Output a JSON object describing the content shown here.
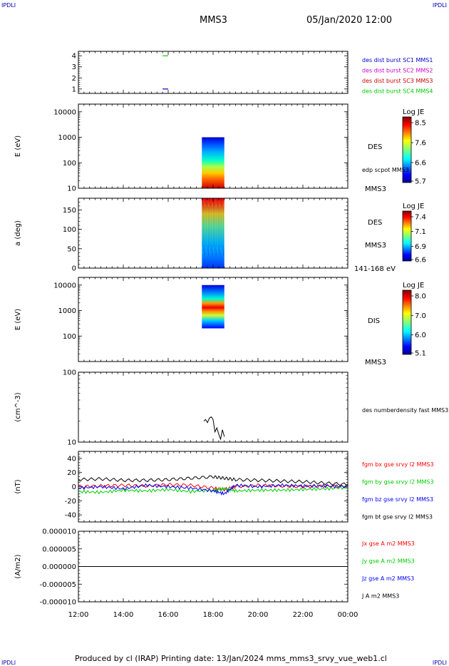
{
  "header": {
    "corner_tl": "IPDLI",
    "corner_tr": "IPDLI",
    "corner_bl": "IPDLI",
    "corner_br": "IPDLI",
    "spacecraft": "MMS3",
    "datetime": "05/Jan/2020 12:00"
  },
  "footer": {
    "text": "Produced by cl (IRAP)   Printing date: 13/Jan/2024   mms_mms3_srvy_vue_web1.cl"
  },
  "colors": {
    "mms1": "#0000cc",
    "mms2": "#cc00cc",
    "mms3": "#cc0000",
    "mms4": "#00cc00",
    "bx": "#ff0000",
    "by": "#00cc00",
    "bz": "#0000ff",
    "bt": "#000000"
  },
  "xaxis": {
    "ticks": [
      "12:00",
      "14:00",
      "16:00",
      "18:00",
      "20:00",
      "22:00",
      "00:00"
    ]
  },
  "chart_data": [
    {
      "type": "line",
      "panel": "burst",
      "ylim": [
        0.6,
        4.4
      ],
      "yticks": [
        "1",
        "2",
        "3",
        "4"
      ],
      "series": [
        {
          "name": "des dist burst SC1 MMS1",
          "color": "#0000cc",
          "x": [
            "15:45",
            "16:00"
          ],
          "y": [
            1,
            1
          ]
        },
        {
          "name": "des dist burst SC2 MMS2",
          "color": "#cc00cc",
          "x": [],
          "y": []
        },
        {
          "name": "des dist burst SC3 MMS3",
          "color": "#cc0000",
          "x": [],
          "y": []
        },
        {
          "name": "des dist burst SC4 MMS4",
          "color": "#00cc00",
          "x": [
            "15:45",
            "16:00"
          ],
          "y": [
            4,
            4
          ]
        }
      ]
    },
    {
      "type": "heatmap",
      "panel": "des-energy",
      "ylabel": "E (eV)",
      "yscale": "log",
      "ylim": [
        10,
        20000
      ],
      "yticks": [
        "10",
        "100",
        "1000",
        "10000"
      ],
      "x_range": [
        "17:30",
        "18:30"
      ],
      "y_range": [
        10,
        1000
      ],
      "label": "DES",
      "extra_label": "edp scpot MMS3",
      "sc_label": "MMS3",
      "colorbar": {
        "title": "Log JE",
        "ticks": [
          "8.5",
          "7.6",
          "6.6",
          "5.7"
        ]
      }
    },
    {
      "type": "heatmap",
      "panel": "des-pitch",
      "ylabel": "a (deg)",
      "ylim": [
        0,
        180
      ],
      "yticks": [
        "0",
        "50",
        "100",
        "150"
      ],
      "x_range": [
        "17:30",
        "18:30"
      ],
      "label": "DES",
      "sc_label": "MMS3",
      "energy_label": "141-168 eV",
      "colorbar": {
        "title": "Log JE",
        "ticks": [
          "7.4",
          "7.1",
          "6.9",
          "6.6"
        ]
      }
    },
    {
      "type": "heatmap",
      "panel": "dis-energy",
      "ylabel": "E (eV)",
      "yscale": "log",
      "ylim": [
        10,
        20000
      ],
      "yticks": [
        "100",
        "1000",
        "10000"
      ],
      "x_range": [
        "17:30",
        "18:30"
      ],
      "y_range": [
        200,
        10000
      ],
      "label": "DIS",
      "sc_label": "MMS3",
      "colorbar": {
        "title": "Log JE",
        "ticks": [
          "8.0",
          "7.0",
          "6.0",
          "5.1"
        ]
      }
    },
    {
      "type": "line",
      "panel": "density",
      "ylabel": "(cm^-3)",
      "yscale": "log",
      "ylim": [
        10,
        100
      ],
      "yticks": [
        "10",
        "100"
      ],
      "series": [
        {
          "name": "des numberdensity fast MMS3",
          "color": "#000000",
          "x": [
            "17:35",
            "17:40",
            "17:45",
            "17:50",
            "17:55",
            "18:00",
            "18:05",
            "18:10",
            "18:15",
            "18:20",
            "18:25",
            "18:30"
          ],
          "y": [
            20,
            21,
            19,
            22,
            23,
            21,
            14,
            16,
            13,
            11,
            15,
            12
          ]
        }
      ]
    },
    {
      "type": "line",
      "panel": "magnetic-field",
      "ylabel": "(nT)",
      "ylim": [
        -50,
        50
      ],
      "yticks": [
        "40",
        "20",
        "0",
        "-20",
        "-40"
      ],
      "series": [
        {
          "name": "fgm bx gse srvy l2 MMS3",
          "color": "#ff0000",
          "x": [
            "12:00",
            "13:00",
            "14:00",
            "15:00",
            "16:00",
            "17:00",
            "18:00",
            "18:30",
            "19:00",
            "20:00",
            "21:00",
            "22:00",
            "23:00",
            "00:00"
          ],
          "y": [
            0,
            1,
            2,
            1,
            3,
            2,
            -2,
            -4,
            0,
            2,
            1,
            0,
            1,
            0
          ]
        },
        {
          "name": "fgm by gse srvy l2 MMS3",
          "color": "#00cc00",
          "x": [
            "12:00",
            "13:00",
            "14:00",
            "15:00",
            "16:00",
            "17:00",
            "18:00",
            "18:30",
            "19:00",
            "20:00",
            "21:00",
            "22:00",
            "23:00",
            "00:00"
          ],
          "y": [
            -7,
            -8,
            -5,
            -6,
            -4,
            -7,
            -5,
            -3,
            -6,
            -5,
            -5,
            -4,
            -3,
            -1
          ]
        },
        {
          "name": "fgm bz gse srvy l2 MMS3",
          "color": "#0000ff",
          "x": [
            "12:00",
            "13:00",
            "14:00",
            "15:00",
            "16:00",
            "17:00",
            "18:00",
            "18:30",
            "19:00",
            "20:00",
            "21:00",
            "22:00",
            "23:00",
            "00:00"
          ],
          "y": [
            -2,
            0,
            -3,
            2,
            0,
            -2,
            -6,
            -10,
            2,
            0,
            2,
            1,
            1,
            0
          ]
        },
        {
          "name": "fgm bt gse srvy l2 MMS3",
          "color": "#000000",
          "x": [
            "12:00",
            "13:00",
            "14:00",
            "15:00",
            "16:00",
            "17:00",
            "18:00",
            "18:30",
            "19:00",
            "20:00",
            "21:00",
            "22:00",
            "23:00",
            "00:00"
          ],
          "y": [
            10,
            11,
            9,
            9,
            10,
            12,
            14,
            12,
            10,
            9,
            8,
            7,
            5,
            3
          ]
        }
      ]
    },
    {
      "type": "line",
      "panel": "current-density",
      "ylabel": "(A/m2)",
      "ylim": [
        -1e-05,
        1e-05
      ],
      "yticks": [
        "0.000010",
        "0.000005",
        "0.000000",
        "-0.000005",
        "-0.000010"
      ],
      "series": [
        {
          "name": "Jx gse A m2 MMS3",
          "color": "#ff0000",
          "x": [
            "12:00",
            "00:00"
          ],
          "y": [
            0,
            0
          ]
        },
        {
          "name": "Jy gse A m2 MMS3",
          "color": "#00cc00",
          "x": [
            "12:00",
            "00:00"
          ],
          "y": [
            0,
            0
          ]
        },
        {
          "name": "Jz gse A m2 MMS3",
          "color": "#0000ff",
          "x": [
            "12:00",
            "00:00"
          ],
          "y": [
            0,
            0
          ]
        },
        {
          "name": "J A m2 MMS3",
          "color": "#000000",
          "x": [
            "12:00",
            "00:00"
          ],
          "y": [
            0,
            0
          ]
        }
      ]
    }
  ]
}
